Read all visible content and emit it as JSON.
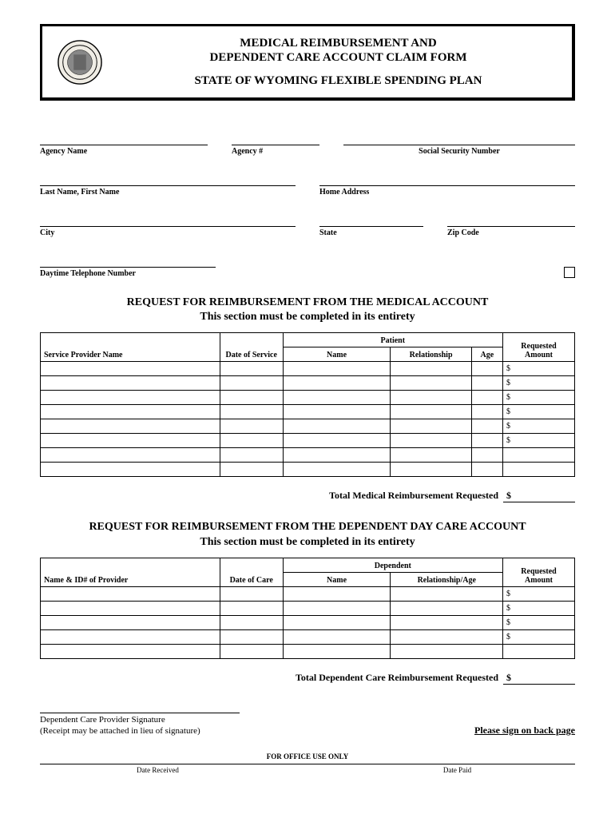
{
  "header": {
    "title_line1": "MEDICAL REIMBURSEMENT AND",
    "title_line2": "DEPENDENT CARE ACCOUNT CLAIM FORM",
    "subtitle": "STATE OF WYOMING FLEXIBLE SPENDING PLAN"
  },
  "fields": {
    "agency_name": "Agency Name",
    "agency_num": "Agency #",
    "ssn": "Social Security Number",
    "last_first": "Last Name, First Name",
    "home_address": "Home Address",
    "city": "City",
    "state": "State",
    "zip": "Zip Code",
    "daytime_phone": "Daytime Telephone Number"
  },
  "medical": {
    "heading1": "REQUEST FOR REIMBURSEMENT FROM THE MEDICAL ACCOUNT",
    "heading2": "This section must be completed in its entirety",
    "columns": {
      "provider": "Service Provider Name",
      "date": "Date of Service",
      "patient": "Patient",
      "name": "Name",
      "relationship": "Relationship",
      "age": "Age",
      "requested": "Requested Amount"
    },
    "dollar": "$",
    "row_count": 6,
    "blank_rows": 2,
    "total_label": "Total Medical Reimbursement Requested",
    "total_symbol": "$"
  },
  "dependent": {
    "heading1": "REQUEST FOR REIMBURSEMENT FROM THE DEPENDENT DAY CARE ACCOUNT",
    "heading2": "This section must be completed in its entirety",
    "columns": {
      "provider": "Name & ID# of Provider",
      "date": "Date of Care",
      "dependent": "Dependent",
      "name": "Name",
      "rel_age": "Relationship/Age",
      "requested": "Requested Amount"
    },
    "dollar": "$",
    "row_count": 4,
    "blank_rows": 1,
    "total_label": "Total Dependent Care Reimbursement Requested",
    "total_symbol": "$"
  },
  "signature": {
    "label": "Dependent Care Provider Signature",
    "note": "(Receipt may be attached in lieu of signature)",
    "sign_back": "Please sign on back page"
  },
  "office": {
    "heading": "FOR OFFICE USE ONLY",
    "date_received": "Date Received",
    "date_paid": "Date Paid"
  },
  "style": {
    "seal_circle1": "#000000",
    "seal_fill": "#f5f5f0"
  }
}
